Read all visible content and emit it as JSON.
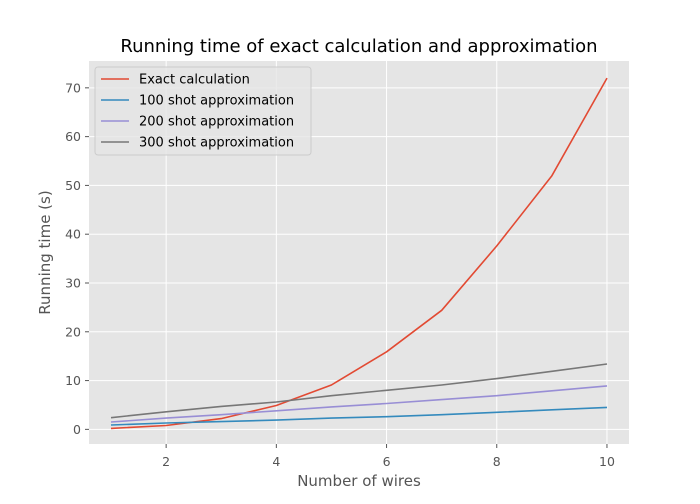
{
  "chart_data": {
    "type": "line",
    "title": "Running time of exact calculation and approximation",
    "xlabel": "Number of wires",
    "ylabel": "Running time (s)",
    "xlim": [
      0.6,
      10.4
    ],
    "ylim": [
      -3,
      75.5
    ],
    "xticks": [
      2,
      4,
      6,
      8,
      10
    ],
    "yticks": [
      0,
      10,
      20,
      30,
      40,
      50,
      60,
      70
    ],
    "grid": true,
    "legend_position": "upper left",
    "x": [
      1,
      2,
      3,
      4,
      5,
      6,
      7,
      8,
      9,
      10
    ],
    "series": [
      {
        "name": "Exact calculation",
        "color": "#e24a33",
        "values": [
          0.2,
          0.8,
          2.2,
          4.9,
          9.1,
          15.9,
          24.4,
          37.6,
          52.0,
          72.0
        ]
      },
      {
        "name": "100 shot approximation",
        "color": "#348abd",
        "values": [
          0.9,
          1.3,
          1.6,
          1.9,
          2.3,
          2.6,
          3.0,
          3.5,
          4.0,
          4.5
        ]
      },
      {
        "name": "200 shot approximation",
        "color": "#988ed5",
        "values": [
          1.5,
          2.3,
          3.0,
          3.8,
          4.6,
          5.3,
          6.1,
          6.9,
          7.9,
          8.9
        ]
      },
      {
        "name": "300 shot approximation",
        "color": "#777777",
        "values": [
          2.4,
          3.6,
          4.7,
          5.6,
          6.9,
          8.0,
          9.1,
          10.4,
          11.9,
          13.4
        ]
      }
    ]
  }
}
